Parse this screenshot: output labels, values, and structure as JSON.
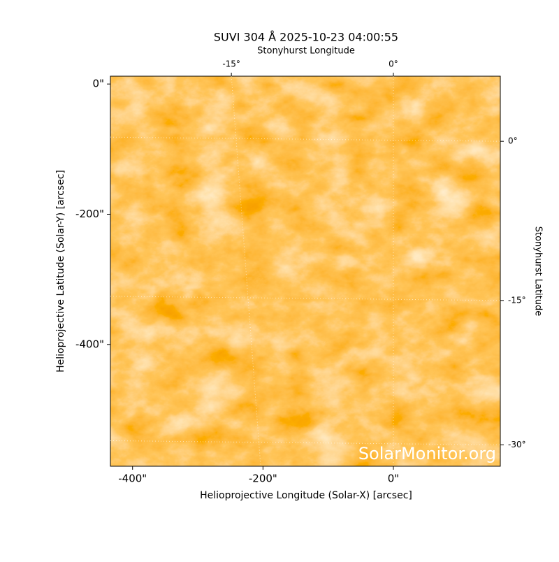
{
  "chart_data": {
    "type": "image",
    "title": "SUVI 304 Å 2025-10-23 04:00:55",
    "x_label": "Helioprojective Longitude (Solar-X) [arcsec]",
    "y_label": "Helioprojective Latitude (Solar-Y) [arcsec]",
    "top_label": "Stonyhurst Longitude",
    "right_label": "Stonyhurst Latitude",
    "xlim": [
      -434,
      164
    ],
    "ylim": [
      -587,
      12
    ],
    "xticks": [
      {
        "value": -400,
        "label": "-400\""
      },
      {
        "value": -200,
        "label": "-200\""
      },
      {
        "value": 0,
        "label": "0\""
      }
    ],
    "yticks": [
      {
        "value": 0,
        "label": "0\""
      },
      {
        "value": -200,
        "label": "-200\""
      },
      {
        "value": -400,
        "label": "-400\""
      }
    ],
    "lon_ticks": [
      {
        "value": -15,
        "label": "-15°"
      },
      {
        "value": 0,
        "label": "0°"
      }
    ],
    "lat_ticks": [
      {
        "value": 0,
        "label": "0°"
      },
      {
        "value": -15,
        "label": "-15°"
      },
      {
        "value": -30,
        "label": "-30°"
      }
    ],
    "watermark": "SolarMonitor.org",
    "grid": true
  }
}
